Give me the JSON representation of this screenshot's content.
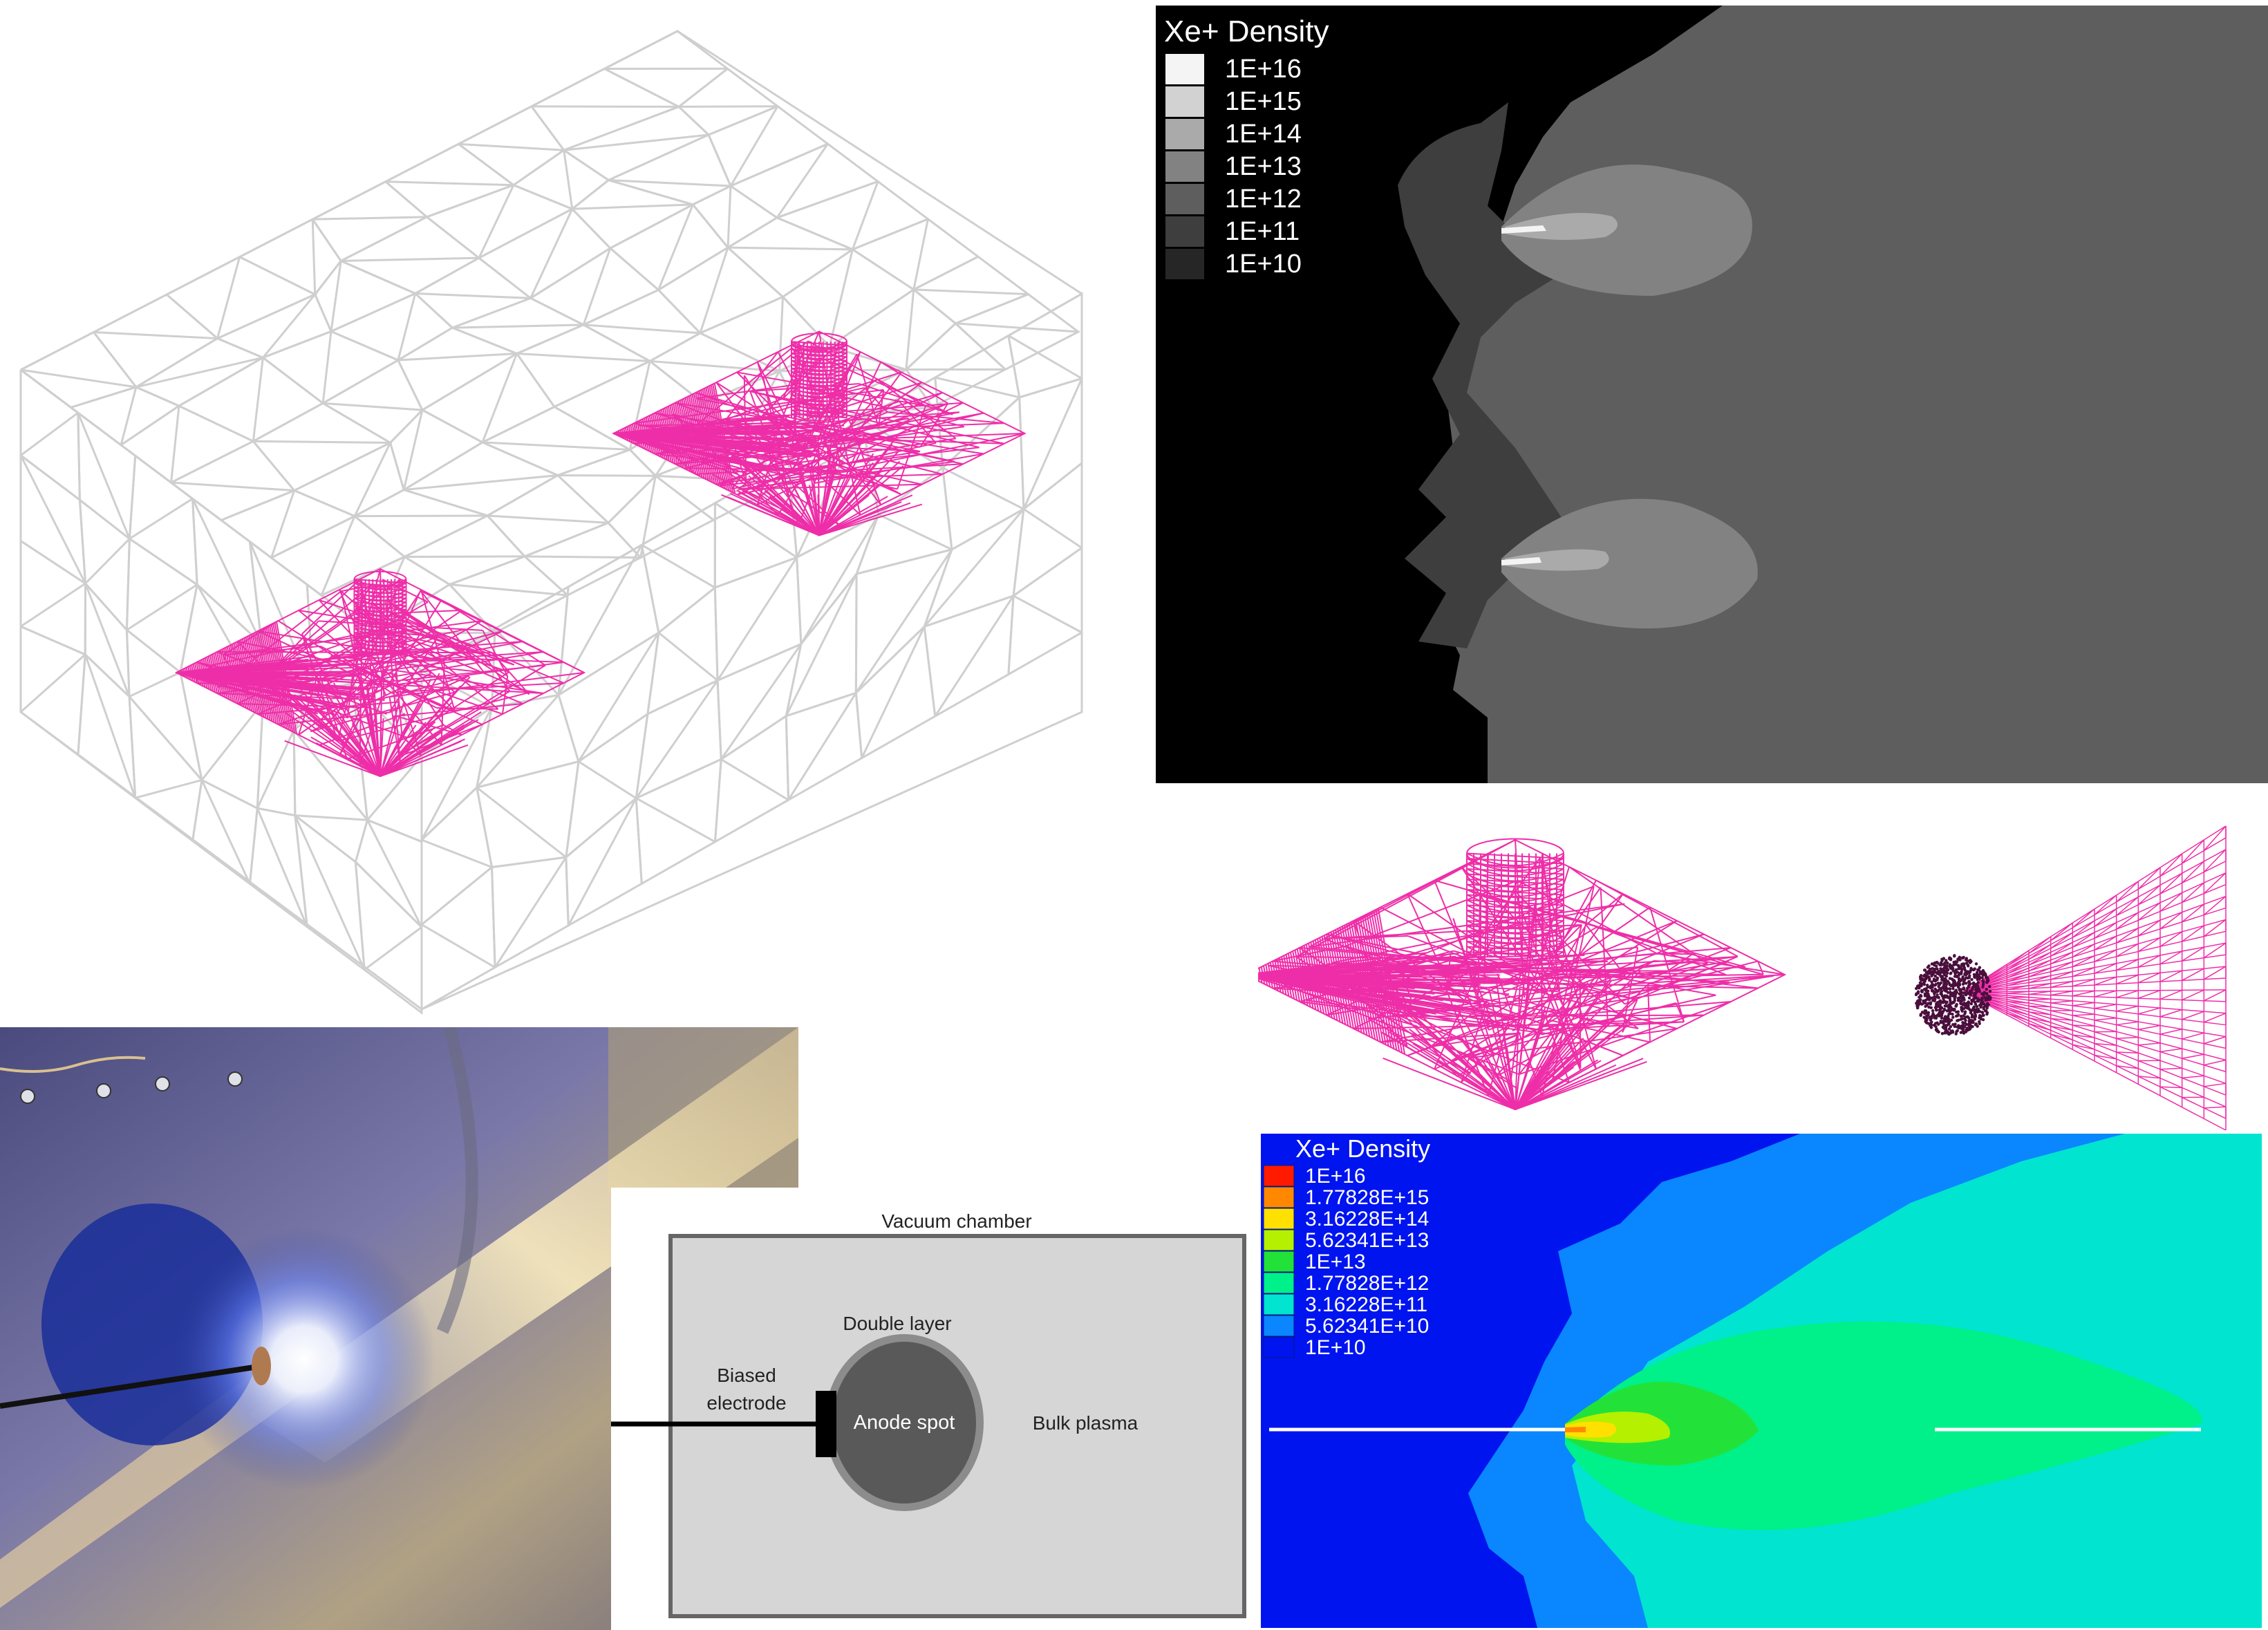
{
  "gray_density_plot": {
    "title": "Xe+ Density",
    "legend": [
      {
        "label": "1E+16",
        "color": "#f4f4f4"
      },
      {
        "label": "1E+15",
        "color": "#d2d2d2"
      },
      {
        "label": "1E+14",
        "color": "#aaaaaa"
      },
      {
        "label": "1E+13",
        "color": "#828282"
      },
      {
        "label": "1E+12",
        "color": "#5e5e5e"
      },
      {
        "label": "1E+11",
        "color": "#3e3e3e"
      },
      {
        "label": "1E+10",
        "color": "#262626"
      }
    ],
    "background_color": "#000000"
  },
  "color_density_plot": {
    "title": "Xe+ Density",
    "legend": [
      {
        "label": "1E+16",
        "color": "#ff1a00"
      },
      {
        "label": "1.77828E+15",
        "color": "#ff8800"
      },
      {
        "label": "3.16228E+14",
        "color": "#ffe000"
      },
      {
        "label": "5.62341E+13",
        "color": "#b4f000"
      },
      {
        "label": "1E+13",
        "color": "#22e23a"
      },
      {
        "label": "1.77828E+12",
        "color": "#00f08a"
      },
      {
        "label": "3.16228E+11",
        "color": "#00e4d0"
      },
      {
        "label": "5.62341E+10",
        "color": "#0a86ff"
      },
      {
        "label": "1E+10",
        "color": "#0014ef"
      }
    ],
    "background_color": "#0014ef"
  },
  "schematic": {
    "title": "Vacuum chamber",
    "double_layer_label": "Double layer",
    "electrode_label_line1": "Biased",
    "electrode_label_line2": "electrode",
    "anode_label": "Anode spot",
    "bulk_label": "Bulk plasma"
  },
  "colors": {
    "mesh_gray": "#cfcfcf",
    "mesh_magenta": "#ee2ea8",
    "dark_particle": "#4a0f3c"
  }
}
